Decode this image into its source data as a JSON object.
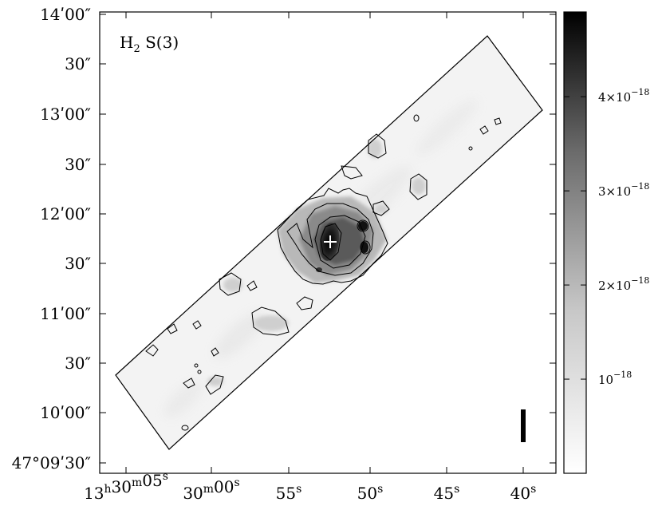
{
  "image": {
    "label_main": "H",
    "label_sub": "2",
    "label_tail": " S(3)"
  },
  "ra_axis": {
    "ticks": [
      {
        "h": "13",
        "m": "30",
        "s": "05"
      },
      {
        "m": "30",
        "s": "00"
      },
      {
        "s": "55"
      },
      {
        "s": "50"
      },
      {
        "s": "45"
      },
      {
        "s": "40"
      }
    ]
  },
  "dec_axis": {
    "ticks": [
      {
        "text": "14ʹ00″"
      },
      {
        "text": "30″"
      },
      {
        "text": "13ʹ00″"
      },
      {
        "text": "30″"
      },
      {
        "text": "12ʹ00″"
      },
      {
        "text": "30″"
      },
      {
        "text": "11ʹ00″"
      },
      {
        "text": "30″"
      },
      {
        "text": "10ʹ00″"
      },
      {
        "text": "47°09ʹ30″"
      }
    ]
  },
  "colorbar": {
    "ticks": [
      {
        "mant": "4×10",
        "exp": "−18",
        "value": 4e-18
      },
      {
        "mant": "3×10",
        "exp": "−18",
        "value": 3e-18
      },
      {
        "mant": "2×10",
        "exp": "−18",
        "value": 2e-18
      },
      {
        "mant": "10",
        "exp": "−18",
        "value": 1e-18
      }
    ],
    "range": [
      0,
      4.9e-18
    ],
    "colors": {
      "low": "#ffffff",
      "high": "#000000"
    }
  },
  "markers": {
    "center": "plus-marker",
    "scale": "scale-bar"
  }
}
